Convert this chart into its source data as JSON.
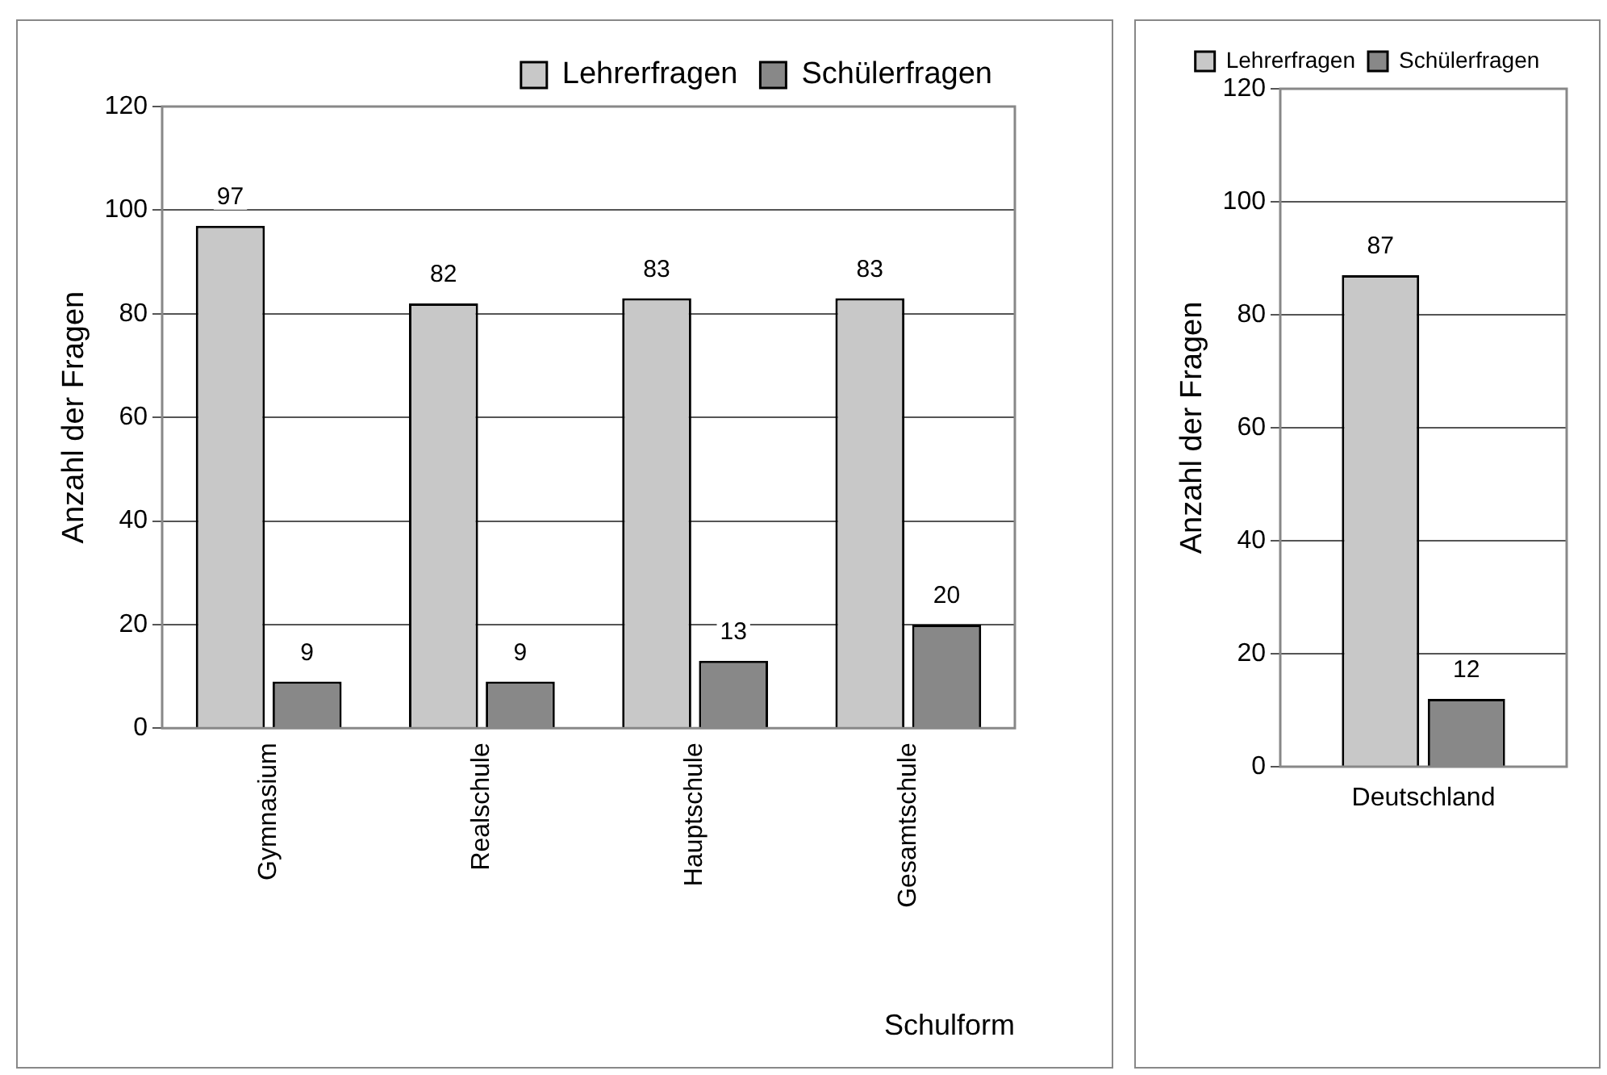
{
  "chart_data": [
    {
      "type": "bar",
      "categories": [
        "Gymnasium",
        "Realschule",
        "Hauptschule",
        "Gesamtschule"
      ],
      "series": [
        {
          "name": "Lehrerfragen",
          "color": "#c8c8c8",
          "values": [
            97,
            82,
            83,
            83
          ]
        },
        {
          "name": "Schülerfragen",
          "color": "#888888",
          "values": [
            9,
            9,
            13,
            20
          ]
        }
      ],
      "xlabel": "Schulform",
      "ylabel": "Anzahl der Fragen",
      "ylim": [
        0,
        120
      ],
      "yticks": [
        0,
        20,
        40,
        60,
        80,
        100,
        120
      ],
      "grid": "y",
      "legend": "top right",
      "data_labels": true
    },
    {
      "type": "bar",
      "categories": [
        "Deutschland"
      ],
      "series": [
        {
          "name": "Lehrerfragen",
          "color": "#c8c8c8",
          "values": [
            87
          ]
        },
        {
          "name": "Schülerfragen",
          "color": "#888888",
          "values": [
            12
          ]
        }
      ],
      "ylabel": "Anzahl der Fragen",
      "ylim": [
        0,
        120
      ],
      "yticks": [
        0,
        20,
        40,
        60,
        80,
        100,
        120
      ],
      "grid": "y",
      "legend": "top",
      "data_labels": true
    }
  ]
}
